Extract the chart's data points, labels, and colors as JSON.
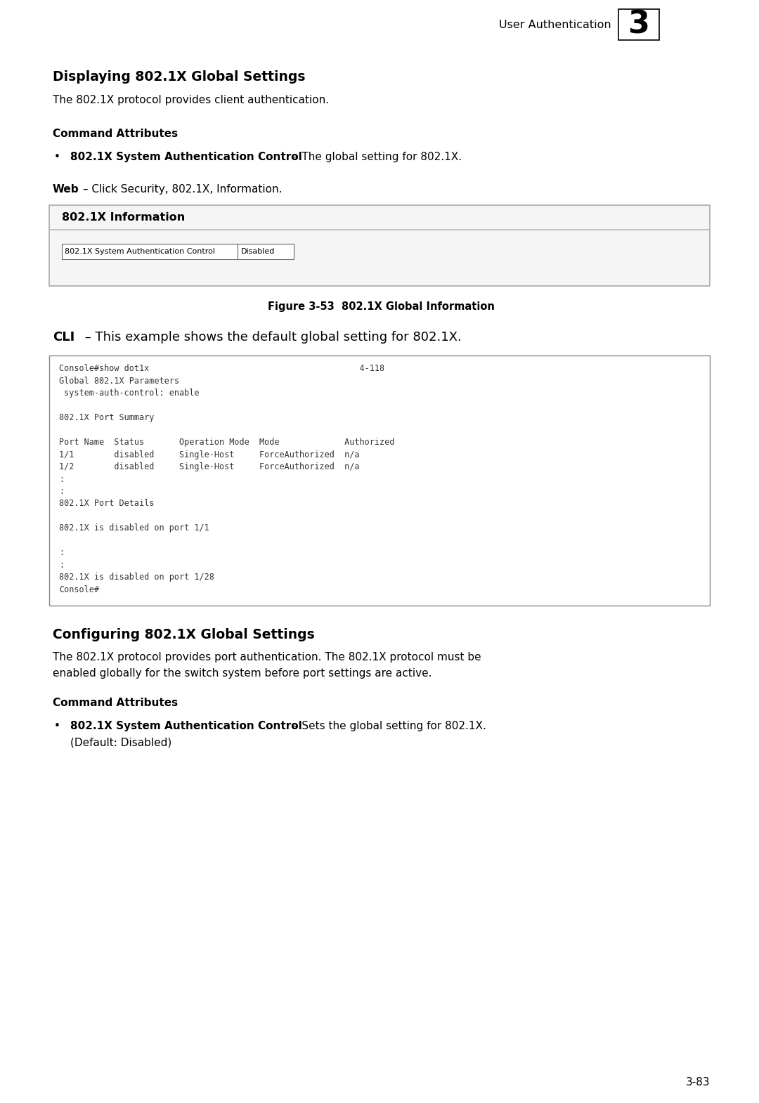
{
  "bg_color": "#ffffff",
  "page_width": 10.8,
  "page_height": 15.7,
  "dpi": 100,
  "header_text": "User Authentication",
  "header_number": "3",
  "section1_title": "Displaying 802.1X Global Settings",
  "section1_body": "The 802.1X protocol provides client authentication.",
  "cmd_attr1": "Command Attributes",
  "bullet1_bold": "802.1X System Authentication Control",
  "bullet1_rest": " – The global setting for 802.1X.",
  "web_bold": "Web",
  "web_rest": " – Click Security, 802.1X, Information.",
  "box1_title": "802.1X Information",
  "box1_field": "802.1X System Authentication Control",
  "box1_value": "Disabled",
  "figure_caption": "Figure 3-53  802.1X Global Information",
  "cli_bold": "CLI",
  "cli_rest": " – This example shows the default global setting for 802.1X.",
  "cli_code": [
    "Console#show dot1x                                          4-118",
    "Global 802.1X Parameters",
    " system-auth-control: enable",
    "",
    "802.1X Port Summary",
    "",
    "Port Name  Status       Operation Mode  Mode             Authorized",
    "1/1        disabled     Single-Host     ForceAuthorized  n/a",
    "1/2        disabled     Single-Host     ForceAuthorized  n/a",
    ":",
    ":",
    "802.1X Port Details",
    "",
    "802.1X is disabled on port 1/1",
    "",
    ":",
    ":",
    "802.1X is disabled on port 1/28",
    "Console#"
  ],
  "section2_title": "Configuring 802.1X Global Settings",
  "section2_body1": "The 802.1X protocol provides port authentication. The 802.1X protocol must be",
  "section2_body2": "enabled globally for the switch system before port settings are active.",
  "cmd_attr2": "Command Attributes",
  "bullet2_bold": "802.1X System Authentication Control",
  "bullet2_rest": " – Sets the global setting for 802.1X.",
  "bullet2_sub": "(Default: Disabled)",
  "page_number": "3-83"
}
